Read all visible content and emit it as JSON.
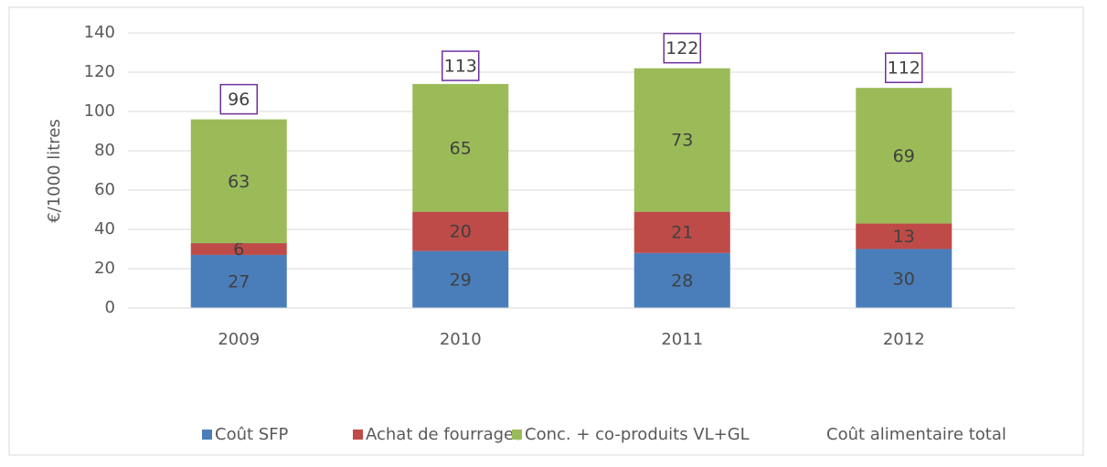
{
  "chart_data": {
    "type": "stacked_bar",
    "y_label": "€/1000 litres",
    "categories": [
      "2009",
      "2010",
      "2011",
      "2012"
    ],
    "series": [
      {
        "name": "Coût SFP",
        "color": "#4a7ebb",
        "values": [
          27,
          29,
          28,
          30
        ]
      },
      {
        "name": "Achat de fourrages",
        "color": "#be4b48",
        "values": [
          6,
          20,
          21,
          13
        ]
      },
      {
        "name": "Conc. + co-produits VL+GL",
        "color": "#9bbb59",
        "values": [
          63,
          65,
          73,
          69
        ]
      },
      {
        "name": "Coût alimentaire total",
        "type": "label",
        "color": "#7030a0",
        "values": [
          96,
          113,
          122,
          112
        ]
      }
    ],
    "ylim": [
      0,
      140
    ],
    "yticks": [
      0,
      20,
      40,
      60,
      80,
      100,
      120,
      140
    ],
    "grid": true,
    "legend": "bottom"
  }
}
